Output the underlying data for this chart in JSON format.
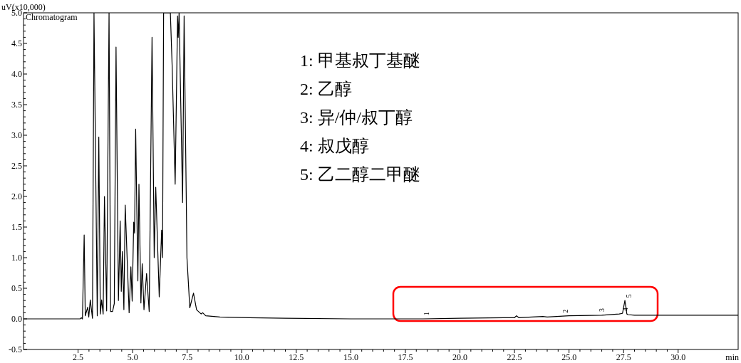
{
  "chart_data": {
    "type": "line",
    "ylabel": "uV(x10,000)",
    "xlabel": "min",
    "color": "#000000",
    "marker": "none",
    "line_style": "solid",
    "grid": false,
    "xlim": [
      0,
      32.75
    ],
    "ylim": [
      -0.5,
      5.0
    ],
    "xticks": [
      {
        "value": 2.5,
        "label": "2.5"
      },
      {
        "value": 5,
        "label": "5.0"
      },
      {
        "value": 7.5,
        "label": "7.5"
      },
      {
        "value": 10,
        "label": "10.0"
      },
      {
        "value": 12.5,
        "label": "12.5"
      },
      {
        "value": 15,
        "label": "15.0"
      },
      {
        "value": 17.5,
        "label": "17.5"
      },
      {
        "value": 20,
        "label": "20.0"
      },
      {
        "value": 22.5,
        "label": "22.5"
      },
      {
        "value": 25,
        "label": "25.0"
      },
      {
        "value": 27.5,
        "label": "27.5"
      },
      {
        "value": 30,
        "label": "30.0"
      }
    ],
    "yticks": [
      -0.5,
      {
        "value": 0,
        "label": "0.0"
      },
      0.5,
      {
        "value": 1,
        "label": "1.0"
      },
      1.5,
      {
        "value": 2,
        "label": "2.0"
      },
      2.5,
      {
        "value": 3,
        "label": "3.0"
      },
      3.5,
      {
        "value": 4,
        "label": "4.0"
      },
      4.5,
      {
        "value": 5,
        "label": "5.0"
      }
    ],
    "x": [
      0,
      1,
      2,
      2.6,
      2.65,
      2.7,
      2.78,
      2.83,
      2.94,
      2.99,
      3.06,
      3.16,
      3.23,
      3.38,
      3.45,
      3.52,
      3.58,
      3.65,
      3.71,
      3.81,
      3.92,
      3.99,
      4.08,
      4.16,
      4.24,
      4.35,
      4.43,
      4.48,
      4.53,
      4.6,
      4.66,
      4.84,
      4.92,
      4.98,
      5.05,
      5.09,
      5.14,
      5.24,
      5.29,
      5.38,
      5.44,
      5.52,
      5.64,
      5.76,
      5.89,
      5.99,
      6.06,
      6.22,
      6.33,
      6.37,
      6.42,
      6.73,
      6.81,
      6.95,
      7.06,
      7.09,
      7.13,
      7.29,
      7.36,
      7.49,
      7.62,
      7.79,
      7.93,
      8.14,
      8.21,
      8.35,
      9,
      10.36,
      12,
      15,
      17,
      18.3,
      20,
      22,
      22.5,
      22.59,
      22.7,
      23.3,
      23.8,
      24,
      25,
      26.5,
      27.3,
      27.45,
      27.56,
      27.65,
      27.7,
      28,
      30,
      32.75
    ],
    "values": [
      0,
      0,
      0,
      0,
      0.02,
      0,
      1.37,
      0.05,
      0.19,
      0.03,
      0.31,
      0.01,
      5.0,
      0.05,
      2.97,
      0.08,
      0.31,
      0.08,
      2.0,
      0.13,
      5.0,
      0.12,
      0.12,
      0.25,
      4.44,
      0.3,
      1.6,
      0.45,
      1.1,
      0.15,
      1.86,
      0.1,
      0.85,
      0.29,
      1.58,
      1.4,
      3.1,
      0.62,
      2.2,
      0.26,
      0.9,
      0.15,
      0.74,
      0.12,
      4.6,
      1.0,
      2.15,
      0.36,
      1.45,
      1.0,
      5.0,
      5.0,
      4.15,
      2.2,
      4.95,
      4.6,
      5.0,
      1.9,
      4.95,
      1.0,
      0.18,
      0.42,
      0.15,
      0.08,
      0.1,
      0.05,
      0.03,
      0.02,
      0.01,
      0.0,
      0.0,
      0.0,
      0.01,
      0.02,
      0.02,
      0.05,
      0.02,
      0.03,
      0.04,
      0.03,
      0.05,
      0.06,
      0.08,
      0.09,
      0.3,
      0.08,
      0.07,
      0.06,
      0.06,
      0.06
    ],
    "annotations": [
      "Chromatogram",
      "1: 甲基叔丁基醚",
      "2: 乙醇",
      "3: 异/仲/叔丁醇",
      "4: 叔戊醇",
      "5: 乙二醇二甲醚",
      {
        "text": "1",
        "x": 18.5,
        "y": 0.01
      },
      {
        "text": "2",
        "x": 24.86,
        "y": 0.05
      },
      {
        "text": "3",
        "x": 26.53,
        "y": 0.07
      },
      {
        "text": "4",
        "x": 27.6,
        "y": 0.08
      },
      {
        "text": "5",
        "x": 27.56,
        "y": 0.3
      }
    ]
  }
}
